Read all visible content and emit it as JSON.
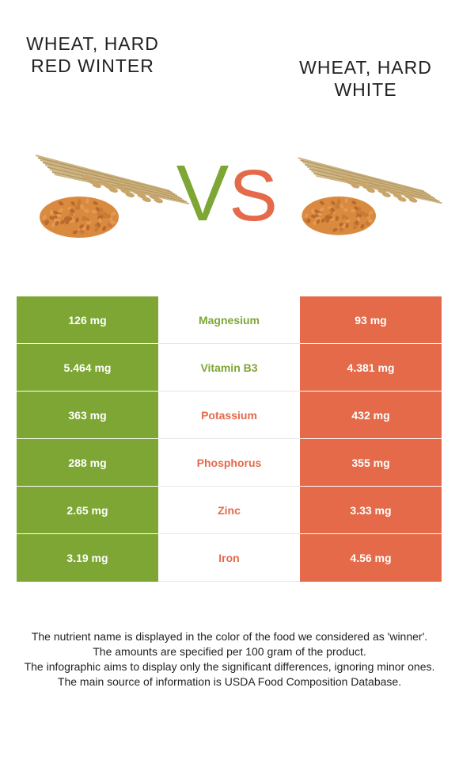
{
  "foods": {
    "left": {
      "name": "Wheat, hard red winter",
      "image": "wheat-grain-heap-icon"
    },
    "right": {
      "name": "Wheat, hard white",
      "image": "wheat-grain-heap-icon"
    }
  },
  "vs": {
    "letter_v": "V",
    "letter_s": "S"
  },
  "colors": {
    "winner_left": "#7da634",
    "winner_right": "#e46a4a",
    "text": "#222222"
  },
  "nutrients": [
    {
      "name": "Magnesium",
      "left": "126 mg",
      "right": "93 mg",
      "winner": "left"
    },
    {
      "name": "Vitamin B3",
      "left": "5.464 mg",
      "right": "4.381 mg",
      "winner": "left"
    },
    {
      "name": "Potassium",
      "left": "363 mg",
      "right": "432 mg",
      "winner": "right"
    },
    {
      "name": "Phosphorus",
      "left": "288 mg",
      "right": "355 mg",
      "winner": "right"
    },
    {
      "name": "Zinc",
      "left": "2.65 mg",
      "right": "3.33 mg",
      "winner": "right"
    },
    {
      "name": "Iron",
      "left": "3.19 mg",
      "right": "4.56 mg",
      "winner": "right"
    }
  ],
  "footer": [
    "The nutrient name is displayed in the color of the food we considered as 'winner'.",
    "The amounts are specified per 100 gram of the product.",
    "The infographic aims to display only the significant differences, ignoring minor ones.",
    "The main source of information is USDA Food Composition Database."
  ]
}
